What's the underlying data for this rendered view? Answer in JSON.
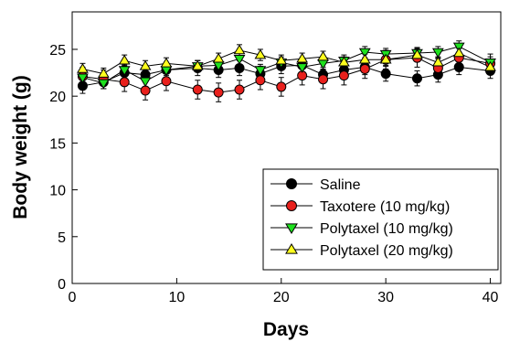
{
  "chart_data": {
    "type": "line",
    "xlabel": "Days",
    "ylabel": "Body weight (g)",
    "xlim": [
      0,
      41
    ],
    "ylim": [
      0,
      29
    ],
    "xticks": [
      0,
      10,
      20,
      30,
      40
    ],
    "yticks": [
      0,
      5,
      10,
      15,
      20,
      25
    ],
    "legend_position": "bottom-right",
    "error_bars": true,
    "series": [
      {
        "name": "Saline",
        "color": "#000000",
        "marker": "circle",
        "x": [
          1,
          3,
          5,
          7,
          9,
          12,
          14,
          16,
          18,
          20,
          22,
          24,
          26,
          28,
          30,
          33,
          35,
          37,
          40
        ],
        "y": [
          21.1,
          21.5,
          22.5,
          22.3,
          22.8,
          23.0,
          22.8,
          23.0,
          22.4,
          23.2,
          23.3,
          22.3,
          22.8,
          23.1,
          22.4,
          21.9,
          22.3,
          23.1,
          22.7
        ],
        "err": [
          0.8,
          0.7,
          0.8,
          0.8,
          0.8,
          0.8,
          0.8,
          0.8,
          0.8,
          0.8,
          0.8,
          0.8,
          0.8,
          0.8,
          0.8,
          0.8,
          0.8,
          0.8,
          0.8
        ]
      },
      {
        "name": "Taxotere (10 mg/kg)",
        "color": "#e8201c",
        "marker": "circle",
        "x": [
          1,
          3,
          5,
          7,
          9,
          12,
          14,
          16,
          18,
          20,
          22,
          24,
          26,
          28,
          30,
          33,
          35,
          37,
          40
        ],
        "y": [
          22.1,
          21.8,
          21.5,
          20.6,
          21.6,
          20.7,
          20.4,
          20.7,
          21.7,
          21.0,
          22.2,
          21.8,
          22.2,
          22.9,
          23.9,
          24.1,
          23.0,
          24.1,
          23.5
        ],
        "err": [
          1.0,
          1.0,
          1.0,
          1.0,
          1.0,
          1.0,
          1.0,
          1.0,
          1.0,
          1.0,
          1.0,
          1.0,
          1.0,
          1.0,
          1.0,
          1.0,
          1.0,
          1.0,
          1.0
        ]
      },
      {
        "name": "Polytaxel (10 mg/kg)",
        "color": "#1ee01e",
        "marker": "triangle-down",
        "x": [
          1,
          3,
          5,
          7,
          9,
          12,
          14,
          16,
          18,
          20,
          22,
          24,
          26,
          28,
          30,
          33,
          35,
          37,
          40
        ],
        "y": [
          22.0,
          21.4,
          22.8,
          21.6,
          22.8,
          23.2,
          23.3,
          24.0,
          22.8,
          23.6,
          23.1,
          23.5,
          23.8,
          24.7,
          24.5,
          24.6,
          24.7,
          25.3,
          23.6
        ],
        "err": [
          0.6,
          0.6,
          0.6,
          0.6,
          0.6,
          0.6,
          0.6,
          0.6,
          0.6,
          0.6,
          0.6,
          0.6,
          0.6,
          0.6,
          0.6,
          0.6,
          0.6,
          0.6,
          0.6
        ]
      },
      {
        "name": "Polytaxel (20 mg/kg)",
        "color": "#ffff1e",
        "marker": "triangle-up",
        "x": [
          1,
          3,
          5,
          7,
          9,
          12,
          14,
          16,
          18,
          20,
          22,
          24,
          26,
          28,
          30,
          33,
          35,
          37,
          40
        ],
        "y": [
          22.9,
          22.4,
          23.8,
          23.2,
          23.5,
          23.2,
          24.0,
          24.9,
          24.4,
          23.8,
          24.0,
          24.2,
          23.6,
          23.9,
          23.9,
          24.4,
          23.6,
          24.6,
          23.1
        ],
        "err": [
          0.6,
          0.6,
          0.6,
          0.6,
          0.6,
          0.6,
          0.6,
          0.6,
          0.6,
          0.6,
          0.6,
          0.6,
          0.6,
          0.6,
          0.6,
          0.6,
          0.6,
          0.6,
          0.6
        ]
      }
    ]
  }
}
